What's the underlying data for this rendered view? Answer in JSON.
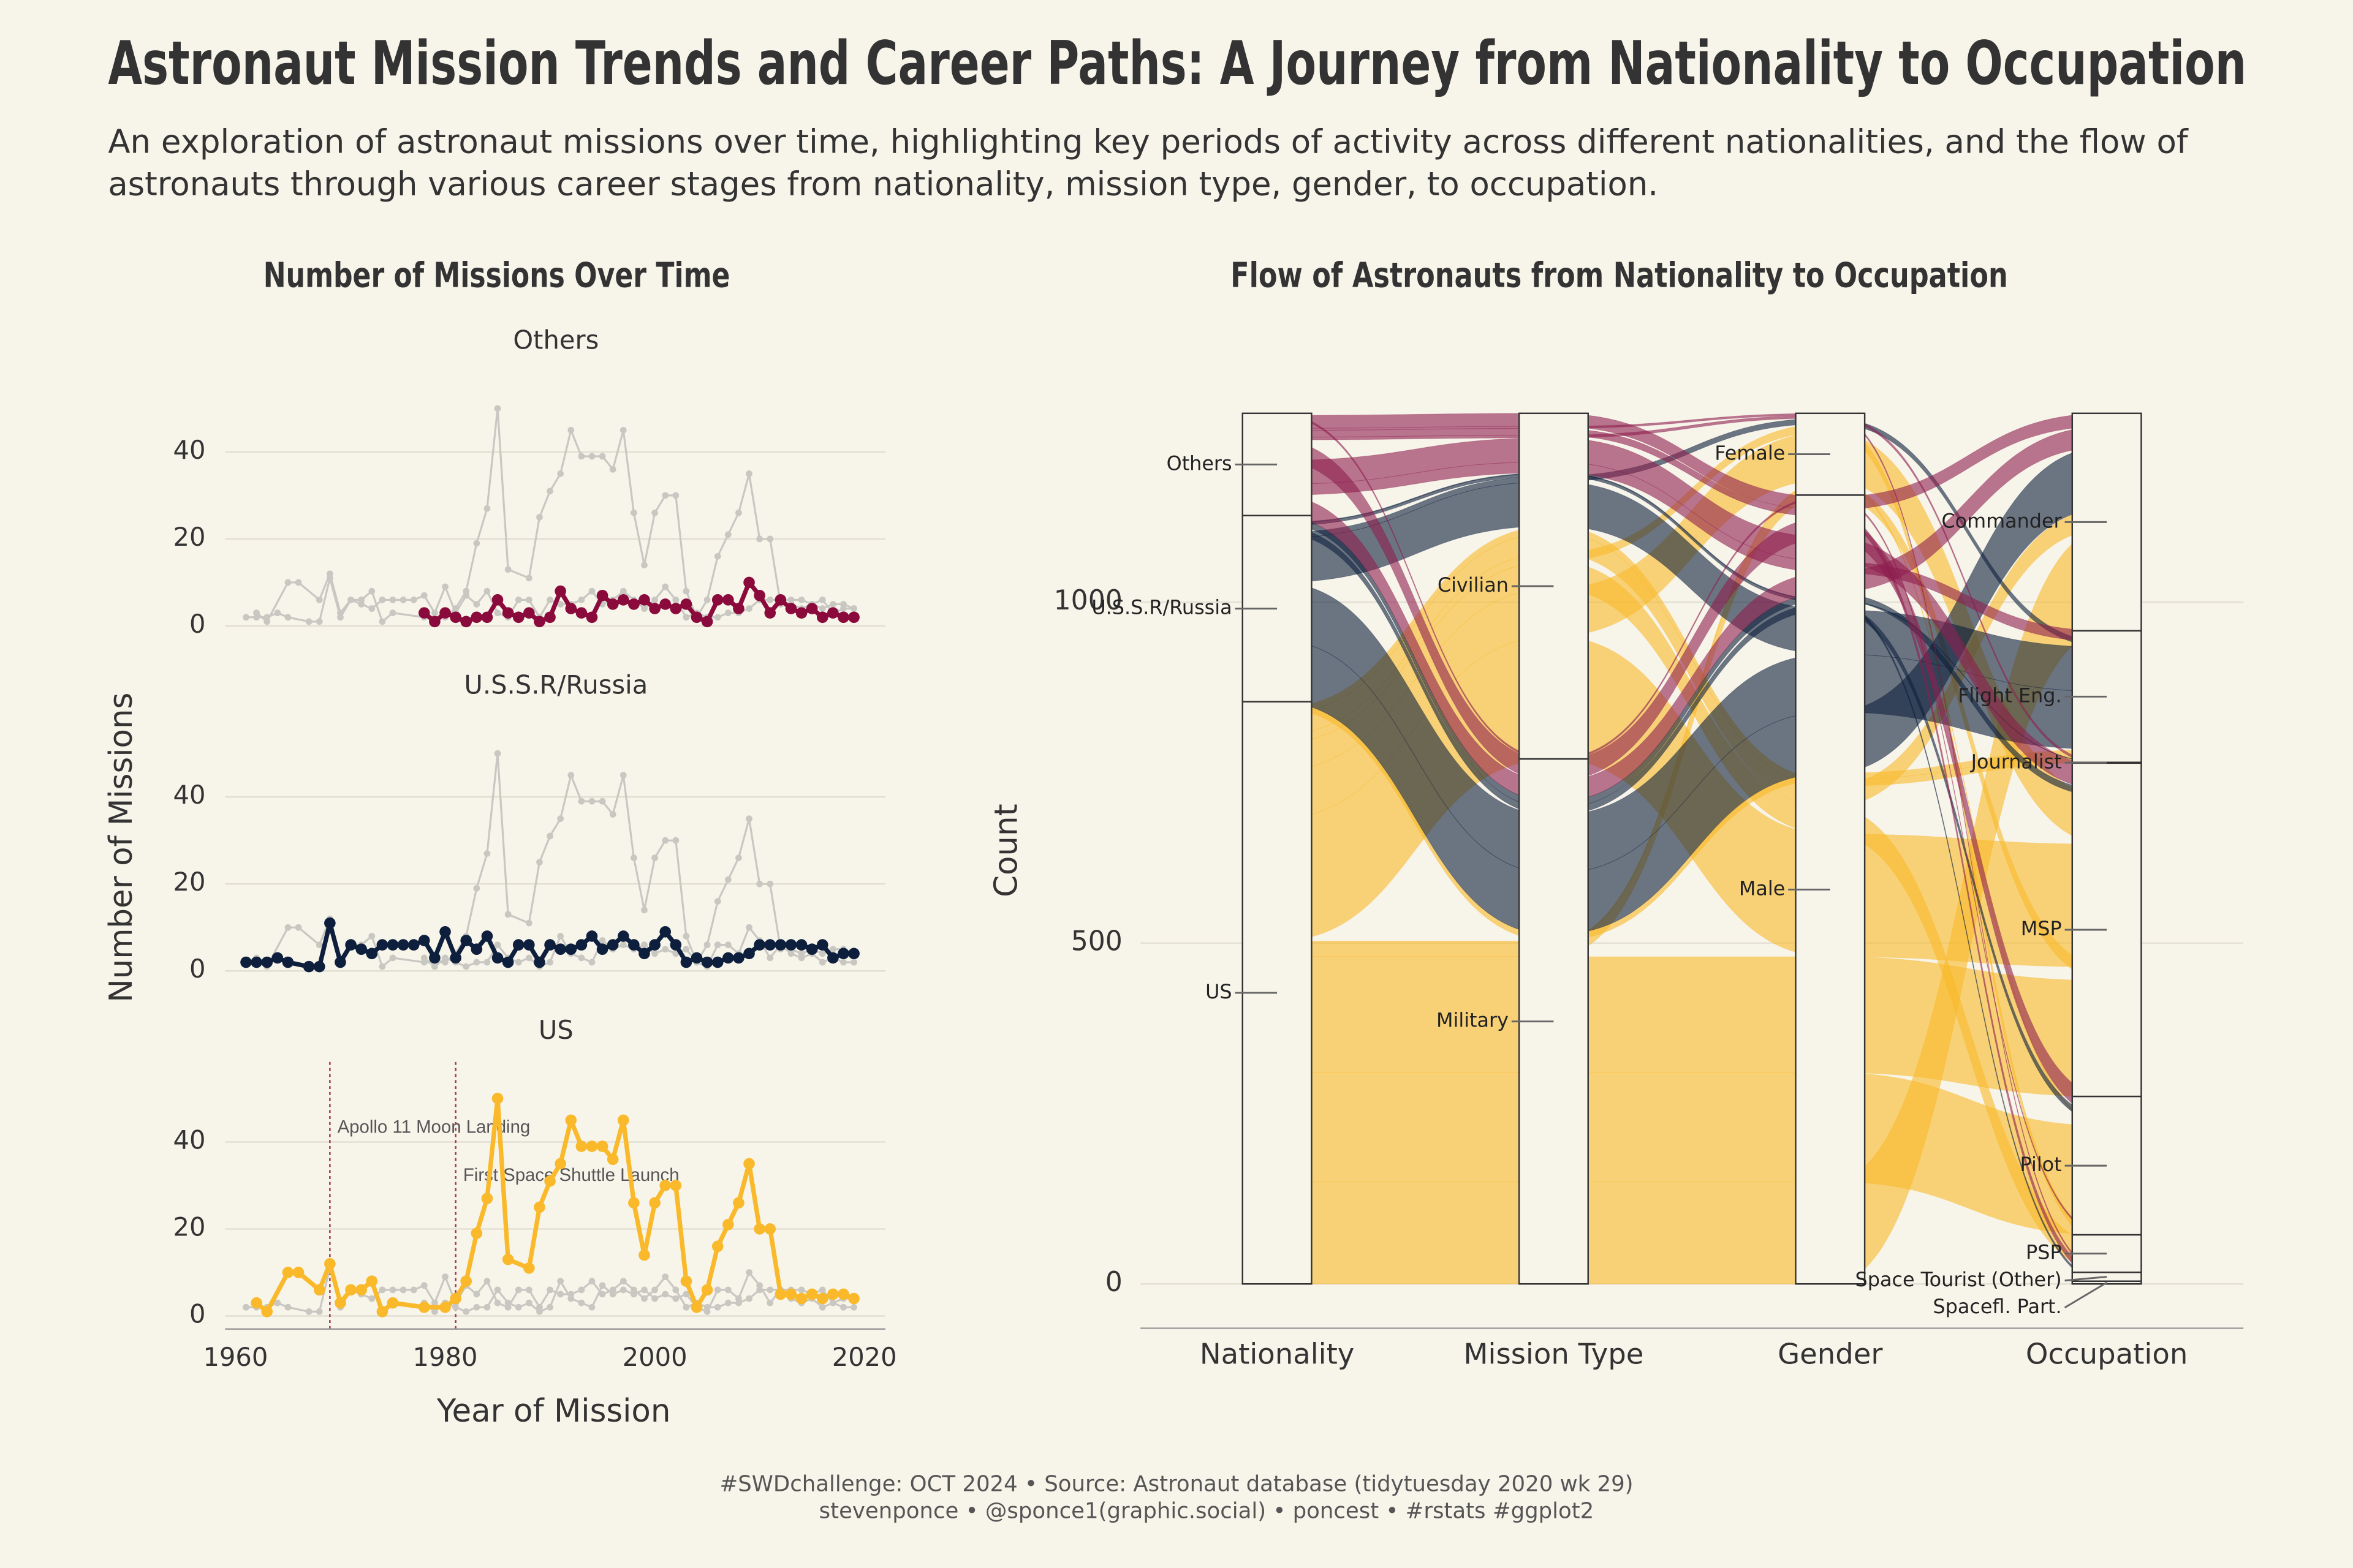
{
  "title": "Astronaut Mission Trends and Career Paths: A Journey from Nationality to Occupation",
  "subtitle": [
    "An exploration of astronaut missions over time, highlighting key periods of activity across different nationalities, and the flow of",
    "astronauts through various career stages from nationality, mission type, gender, to occupation."
  ],
  "caption": [
    "#SWDchallenge: OCT 2024 • Source: Astronaut database (tidytuesday 2020 wk 29)",
    "stevenponce • @sponce1(graphic.social) • poncest • #rstats #ggplot2"
  ],
  "chart_data": [
    {
      "type": "line",
      "title": "Number of Missions Over Time",
      "x_label": "Year of Mission",
      "y_label": "Number of Missions",
      "xlim": [
        1958,
        2022
      ],
      "xticks": [
        1960,
        1980,
        2000,
        2020
      ],
      "ylim": [
        -3,
        57
      ],
      "yticks": [
        0,
        20,
        40
      ],
      "grid": true,
      "muted_color": "#c9c7c2",
      "series": [
        {
          "name": "Others",
          "color": "#8b0a3c",
          "x": [
            1978,
            1979,
            1980,
            1981,
            1982,
            1983,
            1984,
            1985,
            1986,
            1987,
            1988,
            1989,
            1990,
            1991,
            1992,
            1993,
            1994,
            1995,
            1996,
            1997,
            1998,
            1999,
            2000,
            2001,
            2002,
            2003,
            2004,
            2005,
            2006,
            2007,
            2008,
            2009,
            2010,
            2011,
            2012,
            2013,
            2014,
            2015,
            2016,
            2017,
            2018,
            2019
          ],
          "values": [
            3,
            1,
            3,
            2,
            1,
            2,
            2,
            6,
            3,
            2,
            3,
            1,
            2,
            8,
            4,
            3,
            2,
            7,
            5,
            6,
            5,
            6,
            4,
            5,
            4,
            5,
            2,
            1,
            6,
            6,
            4,
            10,
            7,
            3,
            6,
            4,
            3,
            4,
            2,
            3,
            2,
            2
          ]
        },
        {
          "name": "U.S.S.R/Russia",
          "color": "#0d1f3c",
          "x": [
            1961,
            1962,
            1963,
            1964,
            1965,
            1967,
            1968,
            1969,
            1970,
            1971,
            1972,
            1973,
            1974,
            1975,
            1976,
            1977,
            1978,
            1979,
            1980,
            1981,
            1982,
            1983,
            1984,
            1985,
            1986,
            1987,
            1988,
            1989,
            1990,
            1991,
            1992,
            1993,
            1994,
            1995,
            1996,
            1997,
            1998,
            1999,
            2000,
            2001,
            2002,
            2003,
            2004,
            2005,
            2006,
            2007,
            2008,
            2009,
            2010,
            2011,
            2012,
            2013,
            2014,
            2015,
            2016,
            2017,
            2018,
            2019
          ],
          "values": [
            2,
            2,
            2,
            3,
            2,
            1,
            1,
            11,
            2,
            6,
            5,
            4,
            6,
            6,
            6,
            6,
            7,
            3,
            9,
            3,
            7,
            5,
            8,
            3,
            2,
            6,
            6,
            2,
            6,
            5,
            5,
            6,
            8,
            5,
            6,
            8,
            6,
            4,
            6,
            9,
            6,
            2,
            3,
            2,
            2,
            3,
            3,
            4,
            6,
            6,
            6,
            6,
            6,
            5,
            6,
            3,
            4,
            4
          ]
        },
        {
          "name": "US",
          "color": "#f9b92a",
          "x": [
            1962,
            1963,
            1965,
            1966,
            1968,
            1969,
            1970,
            1971,
            1972,
            1973,
            1974,
            1975,
            1978,
            1980,
            1981,
            1982,
            1983,
            1984,
            1985,
            1986,
            1988,
            1989,
            1990,
            1991,
            1992,
            1993,
            1994,
            1995,
            1996,
            1997,
            1998,
            1999,
            2000,
            2001,
            2002,
            2003,
            2004,
            2005,
            2006,
            2007,
            2008,
            2009,
            2010,
            2011,
            2012,
            2013,
            2014,
            2015,
            2016,
            2017,
            2018,
            2019
          ],
          "values": [
            3,
            1,
            10,
            10,
            6,
            12,
            3,
            6,
            6,
            8,
            1,
            3,
            2,
            2,
            4,
            8,
            19,
            27,
            50,
            13,
            11,
            25,
            31,
            35,
            45,
            39,
            39,
            39,
            36,
            45,
            26,
            14,
            26,
            30,
            30,
            8,
            2,
            6,
            16,
            21,
            26,
            35,
            20,
            20,
            5,
            5,
            4,
            5,
            4,
            5,
            5,
            4
          ]
        }
      ],
      "annotation_color": "#a3334f",
      "annotations": [
        {
          "x": 1969,
          "text": "Apollo 11 Moon Landing",
          "facet": "US"
        },
        {
          "x": 1981,
          "text": "First Space Shuttle Launch",
          "facet": "US"
        }
      ]
    },
    {
      "type": "alluvial",
      "title": "Flow of Astronauts from Nationality to Occupation",
      "y_label": "Count",
      "ylim": [
        -65,
        1320
      ],
      "yticks": [
        0,
        500,
        1000
      ],
      "grid": true,
      "colors": [
        "#8d1e4e",
        "#0d1f3c",
        "#f9b92a"
      ],
      "axes": [
        {
          "name": "Nationality",
          "strata": [
            "Others",
            "U.S.S.R/Russia",
            "US"
          ]
        },
        {
          "name": "Mission Type",
          "strata": [
            "Civilian",
            "Military"
          ]
        },
        {
          "name": "Gender",
          "strata": [
            "Female",
            "Male"
          ]
        },
        {
          "name": "Occupation",
          "strata": [
            "Commander",
            "Flight Eng.",
            "Journalist",
            "MSP",
            "Pilot",
            "PSP",
            "Space Tourist (Other)",
            "Spacefl. Part."
          ]
        }
      ],
      "flows": [
        {
          "path": [
            "US",
            "Military",
            "Male",
            "Commander"
          ],
          "value": 150
        },
        {
          "path": [
            "US",
            "Military",
            "Male",
            "Pilot"
          ],
          "value": 160
        },
        {
          "path": [
            "US",
            "Military",
            "Male",
            "MSP"
          ],
          "value": 170
        },
        {
          "path": [
            "US",
            "Military",
            "Female",
            "MSP"
          ],
          "value": 20
        },
        {
          "path": [
            "US",
            "Military",
            "Female",
            "Pilot"
          ],
          "value": 3
        },
        {
          "path": [
            "US",
            "Civilian",
            "Male",
            "MSP"
          ],
          "value": 180
        },
        {
          "path": [
            "US",
            "Civilian",
            "Female",
            "MSP"
          ],
          "value": 70
        },
        {
          "path": [
            "US",
            "Civilian",
            "Male",
            "PSP"
          ],
          "value": 40
        },
        {
          "path": [
            "US",
            "Civilian",
            "Female",
            "PSP"
          ],
          "value": 12
        },
        {
          "path": [
            "US",
            "Civilian",
            "Male",
            "Commander"
          ],
          "value": 30
        },
        {
          "path": [
            "US",
            "Civilian",
            "Male",
            "Flight Eng."
          ],
          "value": 10
        },
        {
          "path": [
            "US",
            "Military",
            "Male",
            "Flight Eng."
          ],
          "value": 9
        },
        {
          "path": [
            "U.S.S.R/Russia",
            "Military",
            "Male",
            "Commander"
          ],
          "value": 90
        },
        {
          "path": [
            "U.S.S.R/Russia",
            "Military",
            "Male",
            "Flight Eng."
          ],
          "value": 85
        },
        {
          "path": [
            "U.S.S.R/Russia",
            "Civilian",
            "Male",
            "Flight Eng."
          ],
          "value": 65
        },
        {
          "path": [
            "U.S.S.R/Russia",
            "Civilian",
            "Female",
            "Flight Eng."
          ],
          "value": 8
        },
        {
          "path": [
            "U.S.S.R/Russia",
            "Military",
            "Male",
            "Pilot"
          ],
          "value": 10
        },
        {
          "path": [
            "U.S.S.R/Russia",
            "Civilian",
            "Male",
            "Spacefl. Part."
          ],
          "value": 4
        },
        {
          "path": [
            "U.S.S.R/Russia",
            "Civilian",
            "Male",
            "Journalist"
          ],
          "value": 1
        },
        {
          "path": [
            "U.S.S.R/Russia",
            "Military",
            "Male",
            "MSP"
          ],
          "value": 10
        },
        {
          "path": [
            "Others",
            "Military",
            "Male",
            "Commander"
          ],
          "value": 30
        },
        {
          "path": [
            "Others",
            "Civilian",
            "Male",
            "Flight Eng."
          ],
          "value": 16
        },
        {
          "path": [
            "Others",
            "Civilian",
            "Male",
            "MSP"
          ],
          "value": 35
        },
        {
          "path": [
            "Others",
            "Military",
            "Male",
            "Pilot"
          ],
          "value": 30
        },
        {
          "path": [
            "Others",
            "Civilian",
            "Female",
            "MSP"
          ],
          "value": 4
        },
        {
          "path": [
            "Others",
            "Civilian",
            "Male",
            "Space Tourist (Other)"
          ],
          "value": 10
        },
        {
          "path": [
            "Others",
            "Civilian",
            "Female",
            "Space Tourist (Other)"
          ],
          "value": 3
        },
        {
          "path": [
            "Others",
            "Civilian",
            "Male",
            "Commander"
          ],
          "value": 19
        },
        {
          "path": [
            "Others",
            "Military",
            "Male",
            "PSP"
          ],
          "value": 3
        }
      ]
    }
  ]
}
